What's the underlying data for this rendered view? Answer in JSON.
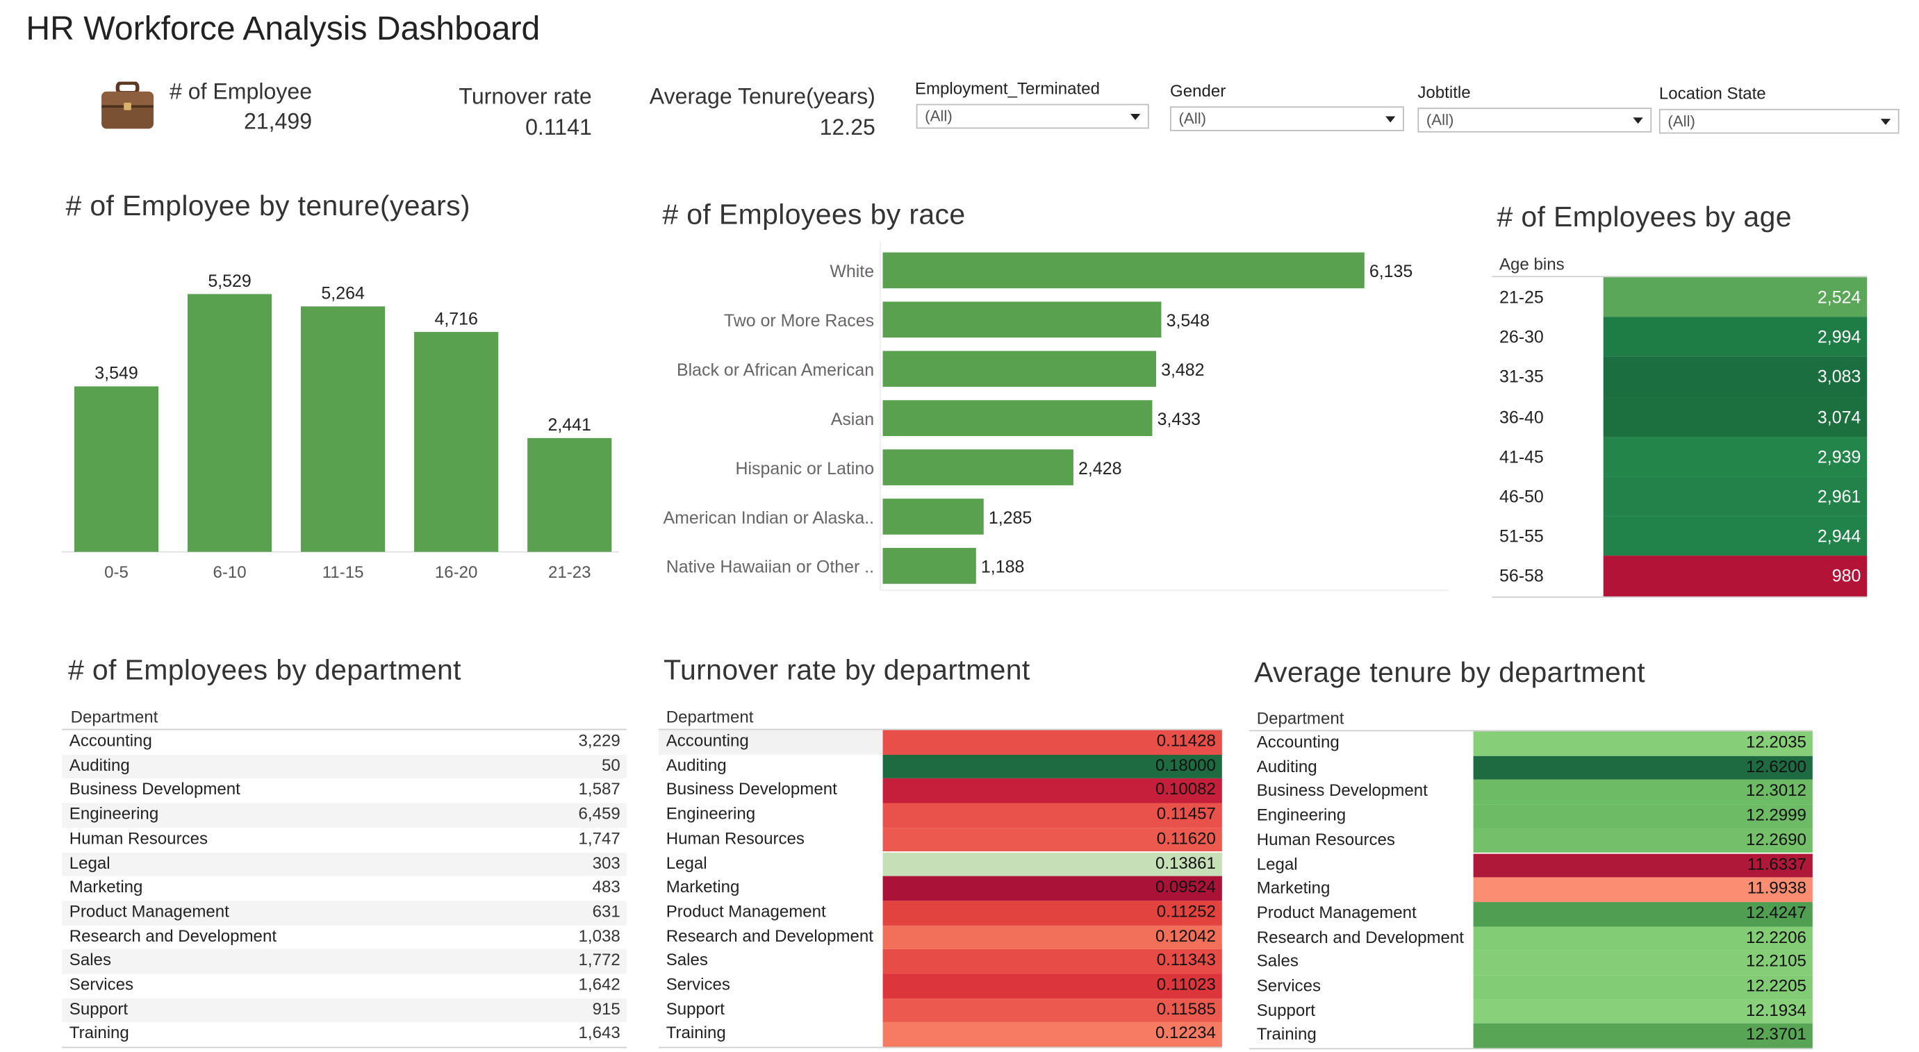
{
  "header": {
    "title": "HR Workforce Analysis Dashboard"
  },
  "kpis": {
    "employee_icon": "briefcase-icon",
    "employees_label": "# of Employee",
    "employees_value": "21,499",
    "turnover_label": "Turnover rate",
    "turnover_value": "0.1141",
    "tenure_label": "Average Tenure(years)",
    "tenure_value": "12.25"
  },
  "filters": [
    {
      "label": "Employment_Terminated",
      "value": "(All)"
    },
    {
      "label": "Gender",
      "value": "(All)"
    },
    {
      "label": "Jobtitle",
      "value": "(All)"
    },
    {
      "label": "Location State",
      "value": "(All)"
    }
  ],
  "chart_data": [
    {
      "type": "bar",
      "title": "# of Employee by tenure(years)",
      "categories": [
        "0-5",
        "6-10",
        "11-15",
        "16-20",
        "21-23"
      ],
      "values": [
        3549,
        5529,
        5264,
        4716,
        2441
      ],
      "value_labels": [
        "3,549",
        "5,529",
        "5,264",
        "4,716",
        "2,441"
      ],
      "ylim": [
        0,
        6000
      ],
      "color": "#59a14f"
    },
    {
      "type": "bar",
      "orientation": "horizontal",
      "title": "# of Employees by race",
      "categories": [
        "White",
        "Two or More Races",
        "Black or African American",
        "Asian",
        "Hispanic or Latino",
        "American Indian or Alaska..",
        "Native Hawaiian or Other .."
      ],
      "values": [
        6135,
        3548,
        3482,
        3433,
        2428,
        1285,
        1188
      ],
      "value_labels": [
        "6,135",
        "3,548",
        "3,482",
        "3,433",
        "2,428",
        "1,285",
        "1,188"
      ],
      "color": "#59a14f"
    },
    {
      "type": "heatmap",
      "title": "# of Employees by age",
      "header": "Age bins",
      "categories": [
        "21-25",
        "26-30",
        "31-35",
        "36-40",
        "41-45",
        "46-50",
        "51-55",
        "56-58"
      ],
      "values": [
        2524,
        2994,
        3083,
        3074,
        2939,
        2961,
        2944,
        980
      ],
      "value_labels": [
        "2,524",
        "2,994",
        "3,083",
        "3,074",
        "2,939",
        "2,961",
        "2,944",
        "980"
      ],
      "colors": [
        "#5ba75a",
        "#1e7c45",
        "#1b6e3f",
        "#1c703f",
        "#23854a",
        "#22824a",
        "#22834a",
        "#b31337"
      ]
    },
    {
      "type": "table",
      "title": "# of Employees by department",
      "header": "Department",
      "categories": [
        "Accounting",
        "Auditing",
        "Business Development",
        "Engineering",
        "Human Resources",
        "Legal",
        "Marketing",
        "Product Management",
        "Research and Development",
        "Sales",
        "Services",
        "Support",
        "Training"
      ],
      "values": [
        3229,
        50,
        1587,
        6459,
        1747,
        303,
        483,
        631,
        1038,
        1772,
        1642,
        915,
        1643
      ],
      "value_labels": [
        "3,229",
        "50",
        "1,587",
        "6,459",
        "1,747",
        "303",
        "483",
        "631",
        "1,038",
        "1,772",
        "1,642",
        "915",
        "1,643"
      ]
    },
    {
      "type": "heatmap",
      "title": "Turnover rate by department",
      "header": "Department",
      "categories": [
        "Accounting",
        "Auditing",
        "Business Development",
        "Engineering",
        "Human Resources",
        "Legal",
        "Marketing",
        "Product Management",
        "Research and Development",
        "Sales",
        "Services",
        "Support",
        "Training"
      ],
      "values": [
        0.11428,
        0.18,
        0.10082,
        0.11457,
        0.1162,
        0.13861,
        0.09524,
        0.11252,
        0.12042,
        0.11343,
        0.11023,
        0.11585,
        0.12234
      ],
      "value_labels": [
        "0.11428",
        "0.18000",
        "0.10082",
        "0.11457",
        "0.11620",
        "0.13861",
        "0.09524",
        "0.11252",
        "0.12042",
        "0.11343",
        "0.11023",
        "0.11585",
        "0.12234"
      ],
      "colors": [
        "#e84f48",
        "#1e6b41",
        "#c51f3b",
        "#e9524a",
        "#ec5a4f",
        "#c6dfb6",
        "#aa1238",
        "#e3433f",
        "#f26f5a",
        "#e84c46",
        "#dd353c",
        "#ec5a4f",
        "#f77b63"
      ]
    },
    {
      "type": "heatmap",
      "title": "Average tenure by department",
      "header": "Department",
      "categories": [
        "Accounting",
        "Auditing",
        "Business Development",
        "Engineering",
        "Human Resources",
        "Legal",
        "Marketing",
        "Product Management",
        "Research and Development",
        "Sales",
        "Services",
        "Support",
        "Training"
      ],
      "values": [
        12.2035,
        12.62,
        12.3012,
        12.2999,
        12.269,
        11.6337,
        11.9938,
        12.4247,
        12.2206,
        12.2105,
        12.2205,
        12.1934,
        12.3701
      ],
      "value_labels": [
        "12.2035",
        "12.6200",
        "12.3012",
        "12.2999",
        "12.2690",
        "11.6337",
        "11.9938",
        "12.4247",
        "12.2206",
        "12.2105",
        "12.2205",
        "12.1934",
        "12.3701"
      ],
      "colors": [
        "#86cf78",
        "#1e6b41",
        "#6dbb64",
        "#6dbb64",
        "#74c06a",
        "#b0183a",
        "#fb8d72",
        "#4f9e51",
        "#82cc75",
        "#85ce77",
        "#82cc75",
        "#88d079",
        "#58a556"
      ]
    }
  ]
}
